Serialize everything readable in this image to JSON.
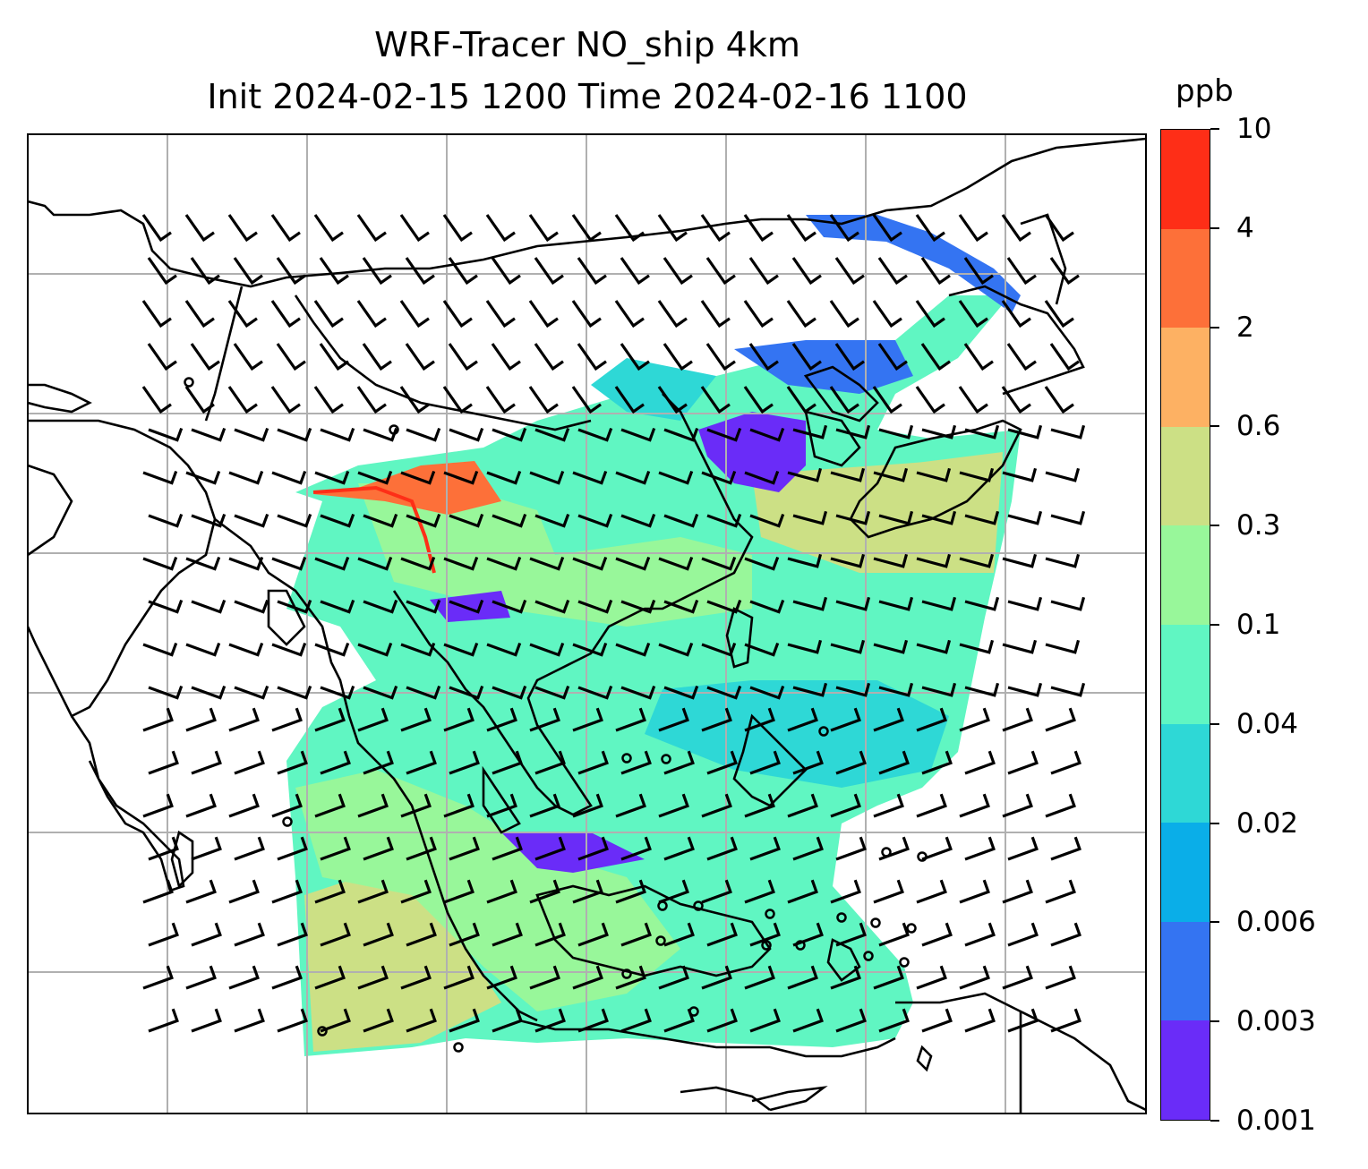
{
  "title_line1": "WRF-Tracer NO_ship 4km",
  "title_line2": "Init 2024-02-15 1200 Time 2024-02-16 1100",
  "colorbar": {
    "unit": "ppb",
    "ticks": [
      "0.001",
      "0.003",
      "0.006",
      "0.02",
      "0.04",
      "0.1",
      "0.3",
      "0.6",
      "2",
      "4",
      "10"
    ],
    "colors": [
      "#6a2cf8",
      "#3474f2",
      "#0aaee8",
      "#2ed8d6",
      "#60f6c2",
      "#98f79a",
      "#cce085",
      "#fdb163",
      "#fd7039",
      "#fe2e17"
    ]
  },
  "map": {
    "gridlines": true,
    "overlays": [
      "coastlines",
      "country-borders",
      "wind-barbs",
      "tracer-concentration"
    ]
  }
}
